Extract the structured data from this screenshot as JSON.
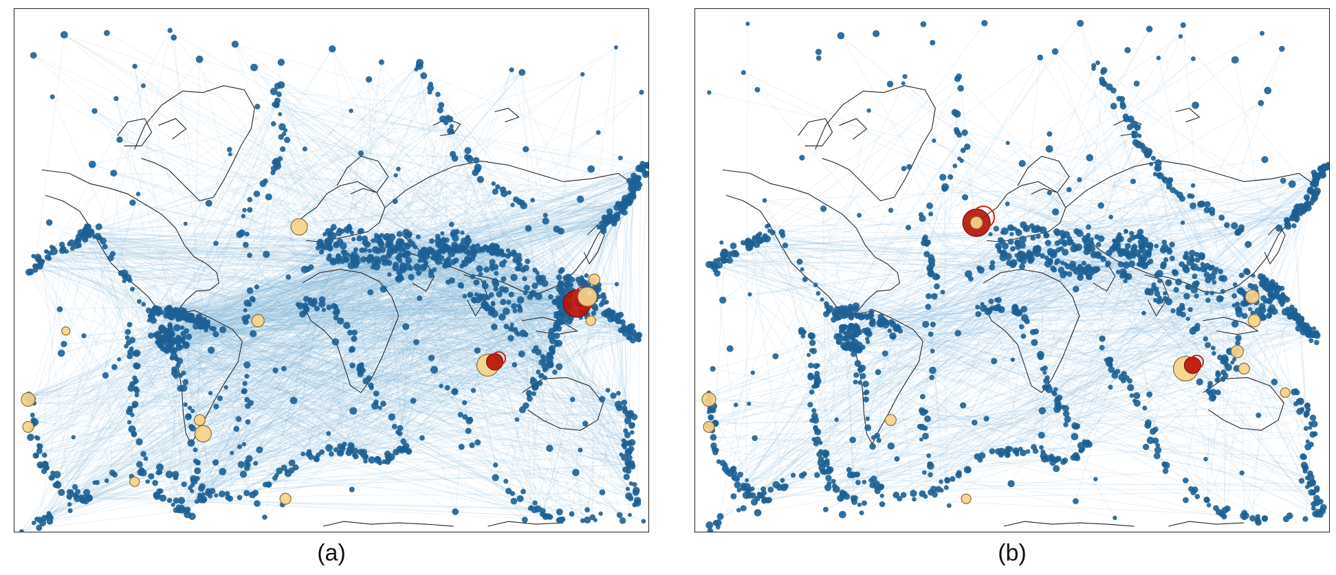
{
  "panels": [
    {
      "id": "a",
      "caption": "(a)",
      "node_color": "#1d5f94",
      "edge_color": "#7eb3d9",
      "coast_color": "#222222",
      "highlight_colors": [
        "#b8150d",
        "#f5d48a"
      ]
    },
    {
      "id": "b",
      "caption": "(b)",
      "node_color": "#1d5f94",
      "edge_color": "#7eb3d9",
      "coast_color": "#222222",
      "highlight_colors": [
        "#b8150d",
        "#f5d48a"
      ]
    }
  ]
}
